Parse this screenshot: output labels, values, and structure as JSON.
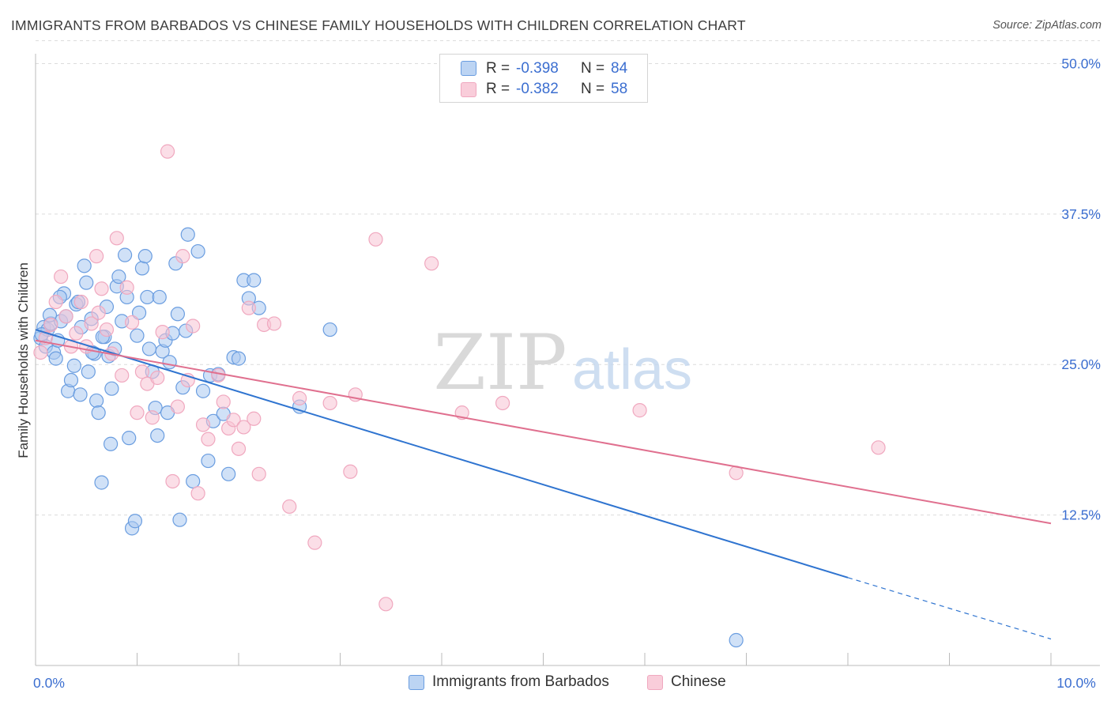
{
  "header": {
    "title": "IMMIGRANTS FROM BARBADOS VS CHINESE FAMILY HOUSEHOLDS WITH CHILDREN CORRELATION CHART",
    "source": "Source: ZipAtlas.com"
  },
  "watermark": {
    "zip": "ZIP",
    "atlas": "atlas"
  },
  "legend_top": [
    {
      "r_label": "R =",
      "r_value": "-0.398",
      "n_label": "N =",
      "n_value": "84"
    },
    {
      "r_label": "R =",
      "r_value": "-0.382",
      "n_label": "N =",
      "n_value": "58"
    }
  ],
  "legend_bottom": [
    "Immigrants from Barbados",
    "Chinese"
  ],
  "chart_data": {
    "type": "scatter",
    "title": "IMMIGRANTS FROM BARBADOS VS CHINESE FAMILY HOUSEHOLDS WITH CHILDREN CORRELATION CHART",
    "xlabel": "",
    "ylabel": "Family Households with Children",
    "xlim": [
      0,
      10
    ],
    "ylim": [
      0,
      52
    ],
    "x_tick_labels": [
      {
        "value": 0,
        "label": "0.0%"
      },
      {
        "value": 10,
        "label": "10.0%"
      }
    ],
    "y_tick_labels": [
      {
        "value": 12.5,
        "label": "12.5%"
      },
      {
        "value": 25,
        "label": "25.0%"
      },
      {
        "value": 37.5,
        "label": "37.5%"
      },
      {
        "value": 50,
        "label": "50.0%"
      }
    ],
    "grid": true,
    "legend": "top-center",
    "series": [
      {
        "name": "Immigrants from Barbados",
        "color": "#6a9de0",
        "fill": "#a9c8f0",
        "r": -0.398,
        "n": 84,
        "trend": {
          "x0": 0.0,
          "y0": 27.9,
          "x_solid_end": 8.0,
          "y_solid_end": 7.3,
          "x1": 10.0,
          "y1": 2.2
        },
        "points": [
          [
            0.05,
            27.2
          ],
          [
            0.08,
            28.1
          ],
          [
            0.1,
            26.5
          ],
          [
            0.12,
            27.9
          ],
          [
            0.15,
            28.4
          ],
          [
            0.18,
            26.0
          ],
          [
            0.2,
            25.5
          ],
          [
            0.22,
            27.0
          ],
          [
            0.25,
            28.6
          ],
          [
            0.28,
            30.9
          ],
          [
            0.3,
            29.0
          ],
          [
            0.32,
            22.8
          ],
          [
            0.35,
            23.7
          ],
          [
            0.38,
            24.9
          ],
          [
            0.4,
            30.0
          ],
          [
            0.42,
            30.2
          ],
          [
            0.45,
            28.1
          ],
          [
            0.48,
            33.2
          ],
          [
            0.5,
            31.8
          ],
          [
            0.52,
            24.4
          ],
          [
            0.55,
            28.8
          ],
          [
            0.58,
            25.9
          ],
          [
            0.6,
            22.0
          ],
          [
            0.62,
            21.0
          ],
          [
            0.65,
            15.2
          ],
          [
            0.68,
            27.3
          ],
          [
            0.7,
            29.8
          ],
          [
            0.72,
            25.7
          ],
          [
            0.75,
            23.0
          ],
          [
            0.78,
            26.3
          ],
          [
            0.8,
            31.5
          ],
          [
            0.82,
            32.3
          ],
          [
            0.85,
            28.6
          ],
          [
            0.88,
            34.1
          ],
          [
            0.9,
            30.6
          ],
          [
            0.92,
            18.9
          ],
          [
            0.95,
            11.4
          ],
          [
            0.98,
            12.0
          ],
          [
            1.0,
            27.4
          ],
          [
            1.02,
            29.3
          ],
          [
            1.05,
            33.0
          ],
          [
            1.08,
            34.0
          ],
          [
            1.1,
            30.6
          ],
          [
            1.12,
            26.3
          ],
          [
            1.15,
            24.4
          ],
          [
            1.18,
            21.4
          ],
          [
            1.2,
            19.1
          ],
          [
            1.22,
            30.6
          ],
          [
            1.25,
            26.1
          ],
          [
            1.28,
            27.0
          ],
          [
            1.3,
            21.0
          ],
          [
            1.32,
            25.2
          ],
          [
            1.35,
            27.6
          ],
          [
            1.38,
            33.4
          ],
          [
            1.4,
            29.2
          ],
          [
            1.42,
            12.1
          ],
          [
            1.45,
            23.1
          ],
          [
            1.48,
            27.8
          ],
          [
            1.5,
            35.8
          ],
          [
            1.55,
            15.3
          ],
          [
            1.6,
            34.4
          ],
          [
            1.65,
            22.8
          ],
          [
            1.7,
            17.0
          ],
          [
            1.72,
            24.1
          ],
          [
            1.75,
            20.3
          ],
          [
            1.8,
            24.2
          ],
          [
            1.85,
            20.9
          ],
          [
            1.9,
            15.9
          ],
          [
            1.95,
            25.6
          ],
          [
            2.0,
            25.5
          ],
          [
            2.05,
            32.0
          ],
          [
            2.1,
            30.5
          ],
          [
            2.15,
            32.0
          ],
          [
            2.2,
            29.7
          ],
          [
            2.6,
            21.5
          ],
          [
            2.9,
            27.9
          ],
          [
            0.06,
            27.5
          ],
          [
            0.14,
            29.1
          ],
          [
            0.24,
            30.6
          ],
          [
            0.44,
            22.5
          ],
          [
            0.56,
            26.0
          ],
          [
            0.66,
            27.3
          ],
          [
            0.74,
            18.4
          ],
          [
            6.9,
            2.1
          ]
        ]
      },
      {
        "name": "Chinese",
        "color": "#f0a8bf",
        "fill": "#f7c3d3",
        "r": -0.382,
        "n": 58,
        "trend": {
          "x0": 0.0,
          "y0": 27.0,
          "x1": 10.0,
          "y1": 11.8
        },
        "points": [
          [
            0.05,
            26.0
          ],
          [
            0.1,
            27.2
          ],
          [
            0.15,
            28.3
          ],
          [
            0.2,
            30.2
          ],
          [
            0.25,
            32.3
          ],
          [
            0.3,
            29.0
          ],
          [
            0.35,
            26.5
          ],
          [
            0.4,
            27.6
          ],
          [
            0.45,
            30.2
          ],
          [
            0.5,
            26.5
          ],
          [
            0.55,
            28.4
          ],
          [
            0.6,
            34.0
          ],
          [
            0.62,
            29.3
          ],
          [
            0.65,
            31.3
          ],
          [
            0.7,
            27.9
          ],
          [
            0.75,
            25.9
          ],
          [
            0.8,
            35.5
          ],
          [
            0.85,
            24.1
          ],
          [
            0.9,
            31.4
          ],
          [
            0.95,
            28.5
          ],
          [
            1.0,
            21.0
          ],
          [
            1.05,
            24.4
          ],
          [
            1.1,
            23.4
          ],
          [
            1.15,
            20.6
          ],
          [
            1.2,
            23.9
          ],
          [
            1.25,
            27.7
          ],
          [
            1.3,
            42.7
          ],
          [
            1.35,
            15.3
          ],
          [
            1.4,
            21.5
          ],
          [
            1.45,
            34.0
          ],
          [
            1.5,
            23.7
          ],
          [
            1.55,
            28.2
          ],
          [
            1.6,
            14.3
          ],
          [
            1.65,
            20.0
          ],
          [
            1.7,
            18.8
          ],
          [
            1.8,
            24.1
          ],
          [
            1.85,
            21.9
          ],
          [
            1.9,
            19.7
          ],
          [
            1.95,
            20.4
          ],
          [
            2.0,
            18.0
          ],
          [
            2.05,
            19.8
          ],
          [
            2.1,
            29.7
          ],
          [
            2.15,
            20.5
          ],
          [
            2.2,
            15.9
          ],
          [
            2.25,
            28.3
          ],
          [
            2.35,
            28.4
          ],
          [
            2.5,
            13.2
          ],
          [
            2.6,
            22.2
          ],
          [
            2.75,
            10.2
          ],
          [
            2.9,
            21.8
          ],
          [
            3.1,
            16.1
          ],
          [
            3.15,
            22.5
          ],
          [
            3.35,
            35.4
          ],
          [
            3.45,
            5.1
          ],
          [
            3.9,
            33.4
          ],
          [
            4.2,
            21.0
          ],
          [
            4.6,
            21.8
          ],
          [
            5.95,
            21.2
          ],
          [
            6.9,
            16.0
          ],
          [
            8.3,
            18.1
          ]
        ]
      }
    ]
  }
}
